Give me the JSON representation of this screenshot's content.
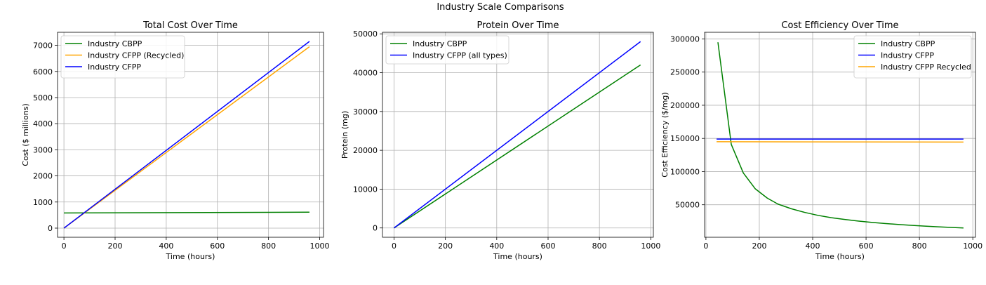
{
  "figure": {
    "suptitle": "Industry Scale Comparisons"
  },
  "chart_data": [
    {
      "type": "line",
      "title": "Total Cost Over Time",
      "xlabel": "Time (hours)",
      "ylabel": "Cost ($ millions)",
      "xlim": [
        -25,
        1015
      ],
      "ylim": [
        -350,
        7500
      ],
      "xticks": [
        0,
        200,
        400,
        600,
        800,
        1000
      ],
      "yticks": [
        0,
        1000,
        2000,
        3000,
        4000,
        5000,
        6000,
        7000
      ],
      "grid": true,
      "legend_position": "upper-left",
      "series": [
        {
          "name": "Industry CBPP",
          "color": "#008000",
          "x": [
            0,
            960
          ],
          "y": [
            580,
            610
          ]
        },
        {
          "name": "Industry CFPP (Recycled)",
          "color": "#FFA500",
          "x": [
            0,
            960
          ],
          "y": [
            0,
            6950
          ]
        },
        {
          "name": "Industry CFPP",
          "color": "#0000FF",
          "x": [
            0,
            960
          ],
          "y": [
            0,
            7150
          ]
        }
      ]
    },
    {
      "type": "line",
      "title": "Protein Over Time",
      "xlabel": "Time (hours)",
      "ylabel": "Protein (mg)",
      "xlim": [
        -45,
        1010
      ],
      "ylim": [
        -2400,
        50400
      ],
      "xticks": [
        0,
        200,
        400,
        600,
        800,
        1000
      ],
      "yticks": [
        0,
        10000,
        20000,
        30000,
        40000,
        50000
      ],
      "grid": true,
      "legend_position": "upper-left",
      "series": [
        {
          "name": "Industry CBPP",
          "color": "#008000",
          "x": [
            0,
            960
          ],
          "y": [
            0,
            42000
          ]
        },
        {
          "name": "Industry CFPP (all types)",
          "color": "#0000FF",
          "x": [
            0,
            960
          ],
          "y": [
            0,
            48000
          ]
        }
      ]
    },
    {
      "type": "line",
      "title": "Cost Efficiency Over Time",
      "xlabel": "Time (hours)",
      "ylabel": "Cost Efficiency ($/mg)",
      "xlim": [
        -5,
        1010
      ],
      "ylim": [
        1000,
        310000
      ],
      "xticks": [
        0,
        200,
        400,
        600,
        800,
        1000
      ],
      "yticks": [
        50000,
        100000,
        150000,
        200000,
        250000,
        300000
      ],
      "grid": true,
      "legend_position": "upper-right",
      "series": [
        {
          "name": "Industry CBPP",
          "color": "#008000",
          "x": [
            45,
            95,
            140,
            185,
            230,
            270,
            320,
            370,
            420,
            470,
            520,
            570,
            620,
            670,
            720,
            770,
            820,
            870,
            920,
            965
          ],
          "y": [
            295000,
            141000,
            98000,
            74000,
            60000,
            51000,
            44000,
            38500,
            34000,
            30500,
            27800,
            25500,
            23500,
            21800,
            20300,
            19000,
            17800,
            16800,
            15800,
            15000
          ]
        },
        {
          "name": "Industry CFPP",
          "color": "#0000FF",
          "x": [
            40,
            965
          ],
          "y": [
            149000,
            149000
          ]
        },
        {
          "name": "Industry CFPP Recycled",
          "color": "#FFA500",
          "x": [
            40,
            965
          ],
          "y": [
            145000,
            144500
          ]
        }
      ]
    }
  ]
}
